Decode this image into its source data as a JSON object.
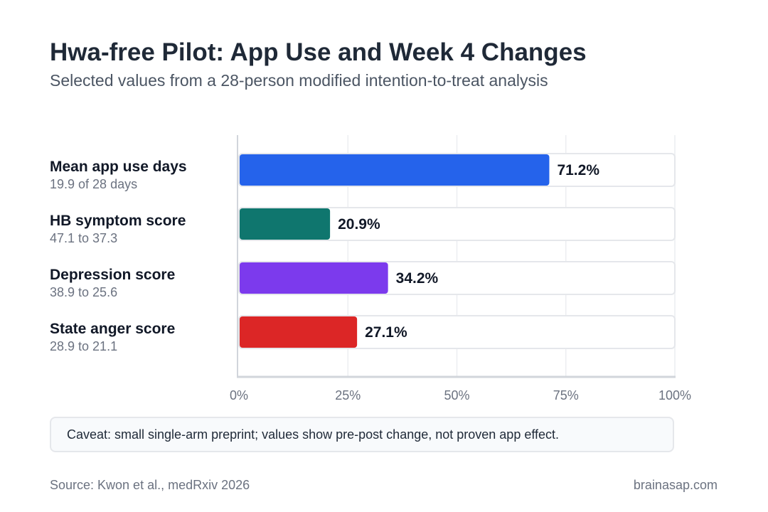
{
  "title": "Hwa-free Pilot: App Use and Week 4 Changes",
  "subtitle": "Selected values from a 28-person modified intention-to-treat analysis",
  "caveat": "Caveat: small single-arm preprint; values show pre-post change, not proven app effect.",
  "source": "Source: Kwon et al., medRxiv 2026",
  "brand": "brainasap.com",
  "chart_data": {
    "type": "bar",
    "orientation": "horizontal",
    "categories": [
      "Mean app use days",
      "HB symptom score",
      "Depression score",
      "State anger score"
    ],
    "sublabels": [
      "19.9 of 28 days",
      "47.1 to 37.3",
      "38.9 to 25.6",
      "28.9 to 21.1"
    ],
    "values": [
      71.2,
      20.9,
      34.2,
      27.1
    ],
    "value_labels": [
      "71.2%",
      "20.9%",
      "34.2%",
      "27.1%"
    ],
    "colors": [
      "#2563eb",
      "#0f766e",
      "#7c3aed",
      "#dc2626"
    ],
    "xlim": [
      0,
      100
    ],
    "xticks": [
      0,
      25,
      50,
      75,
      100
    ],
    "xtick_labels": [
      "0%",
      "25%",
      "50%",
      "75%",
      "100%"
    ],
    "grid": true
  }
}
